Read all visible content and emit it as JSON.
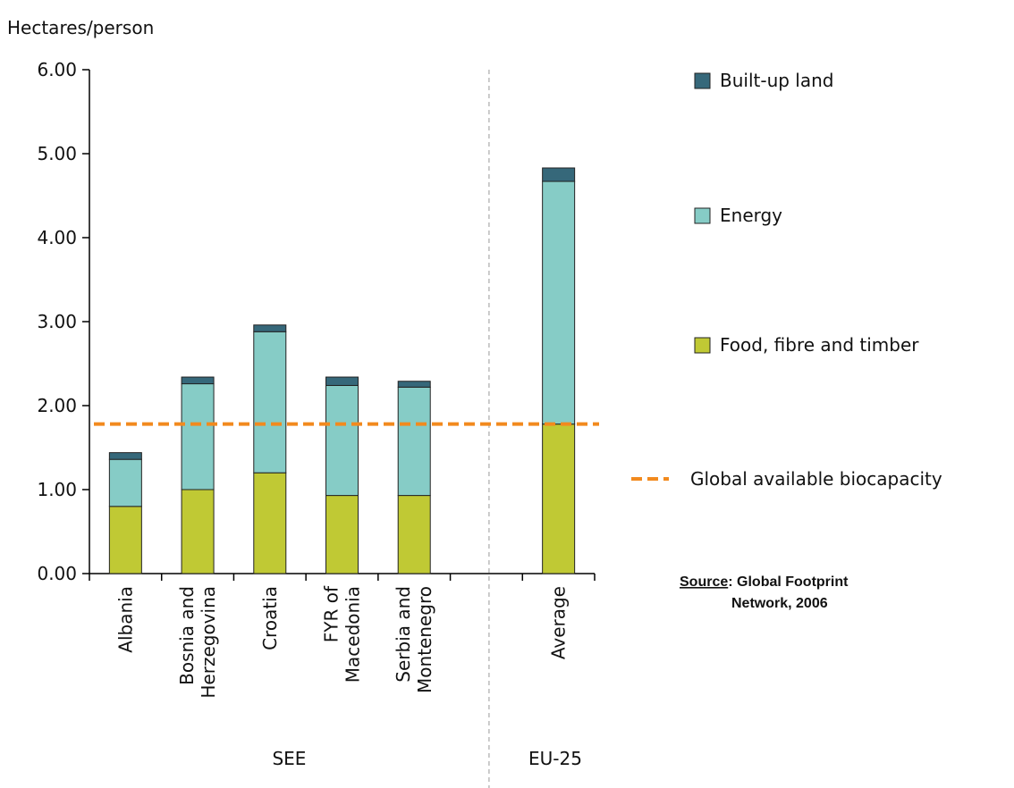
{
  "chart_data": {
    "type": "bar",
    "stacked": true,
    "ylabel": "Hectares/person",
    "ylim": [
      0,
      6
    ],
    "yticks": [
      "0.00",
      "1.00",
      "2.00",
      "3.00",
      "4.00",
      "5.00",
      "6.00"
    ],
    "categories": [
      {
        "lines": [
          "Albania"
        ],
        "group": "SEE"
      },
      {
        "lines": [
          "Bosnia and",
          "Herzegovina"
        ],
        "group": "SEE"
      },
      {
        "lines": [
          "Croatia"
        ],
        "group": "SEE"
      },
      {
        "lines": [
          "FYR of",
          "Macedonia"
        ],
        "group": "SEE"
      },
      {
        "lines": [
          "Serbia and",
          "Montenegro"
        ],
        "group": "SEE"
      },
      {
        "lines": [
          ""
        ],
        "group": "EU-25"
      },
      {
        "lines": [
          "Average"
        ],
        "group": "EU-25"
      }
    ],
    "groups": [
      "SEE",
      "EU-25"
    ],
    "series": [
      {
        "name": "Food, fibre and timber",
        "color": "#c0c934",
        "values": [
          0.8,
          1.0,
          1.2,
          0.93,
          0.93,
          null,
          1.78
        ]
      },
      {
        "name": "Energy",
        "color": "#86ccc6",
        "values": [
          0.56,
          1.26,
          1.68,
          1.31,
          1.29,
          null,
          2.89
        ]
      },
      {
        "name": "Built-up land",
        "color": "#36687a",
        "values": [
          0.08,
          0.08,
          0.08,
          0.1,
          0.07,
          null,
          0.16
        ]
      }
    ],
    "reference_line": {
      "name": "Global available biocapacity",
      "value": 1.78,
      "color": "#f28a1e",
      "style": "dashed"
    },
    "legend_order": [
      "Built-up land",
      "Energy",
      "Food, fibre and timber",
      "Global available biocapacity"
    ],
    "legend_position": "right",
    "grid": false
  },
  "source": {
    "label": "Source",
    "text_line1": ": Global Footprint",
    "text_line2": "Network, 2006"
  }
}
